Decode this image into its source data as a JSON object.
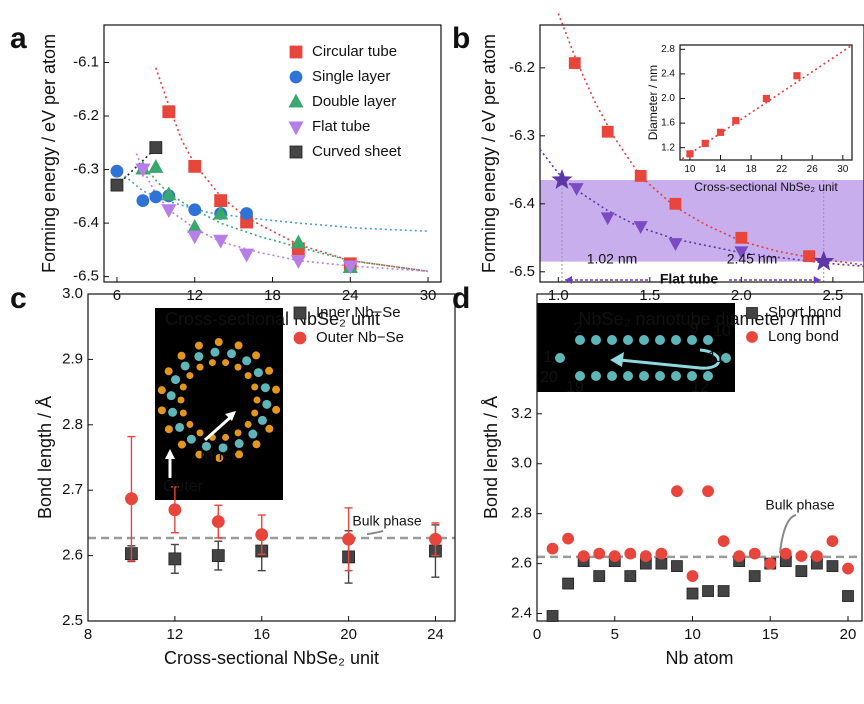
{
  "chart_data": [
    {
      "type": "scatter",
      "panel_label": "a",
      "xlabel": "Cross-sectional NbSe₂ unit",
      "ylabel": "Forming energy / eV per atom",
      "xlim": [
        5,
        31
      ],
      "ylim": [
        -6.51,
        -6.03
      ],
      "xticks": [
        6,
        12,
        18,
        24,
        30
      ],
      "yticks": [
        -6.5,
        -6.4,
        -6.3,
        -6.2,
        -6.1
      ],
      "series": [
        {
          "name": "Circular tube",
          "color": "#e8453c",
          "marker": "square",
          "x": [
            10,
            12,
            14,
            16,
            20,
            24
          ],
          "values": [
            -6.192,
            -6.294,
            -6.358,
            -6.398,
            -6.448,
            -6.476
          ]
        },
        {
          "name": "Single layer",
          "color": "#2f72d8",
          "marker": "circle",
          "x": [
            6,
            8,
            9,
            10,
            12,
            14,
            16
          ],
          "values": [
            -6.303,
            -6.358,
            -6.351,
            -6.349,
            -6.375,
            -6.382,
            -6.382
          ]
        },
        {
          "name": "Double layer",
          "color": "#3aa76d",
          "marker": "triangle",
          "x": [
            8,
            9,
            10,
            12,
            14,
            20,
            24
          ],
          "values": [
            -6.299,
            -6.296,
            -6.347,
            -6.408,
            -6.383,
            -6.437,
            -6.483
          ]
        },
        {
          "name": "Flat tube",
          "color": "#b77ee8",
          "marker": "triangle-down",
          "x": [
            8,
            10,
            12,
            14,
            16,
            20,
            24
          ],
          "values": [
            -6.299,
            -6.375,
            -6.424,
            -6.432,
            -6.458,
            -6.47,
            -6.48
          ]
        },
        {
          "name": "Curved sheet",
          "color": "#444444",
          "marker": "square",
          "x": [
            6,
            9
          ],
          "values": [
            -6.329,
            -6.259
          ]
        }
      ],
      "fit_curves": [
        {
          "color": "#e04040",
          "x": [
            9,
            10,
            11,
            12,
            14,
            16,
            20,
            24,
            30
          ],
          "values": [
            -6.11,
            -6.18,
            -6.245,
            -6.29,
            -6.35,
            -6.39,
            -6.44,
            -6.47,
            -6.49
          ]
        },
        {
          "color": "#4a9be0",
          "x": [
            6,
            8,
            10,
            13,
            16,
            20,
            25,
            30
          ],
          "values": [
            -6.3,
            -6.34,
            -6.36,
            -6.38,
            -6.39,
            -6.4,
            -6.41,
            -6.415
          ]
        },
        {
          "color": "#3aa76d",
          "x": [
            8,
            9,
            10,
            12,
            14,
            17,
            20,
            24,
            30
          ],
          "values": [
            -6.29,
            -6.32,
            -6.345,
            -6.375,
            -6.4,
            -6.425,
            -6.445,
            -6.47,
            -6.49
          ]
        },
        {
          "color": "#b77ee8",
          "x": [
            7.5,
            8,
            9,
            10,
            12,
            14,
            17,
            20,
            24,
            30
          ],
          "values": [
            -6.27,
            -6.3,
            -6.345,
            -6.375,
            -6.41,
            -6.435,
            -6.455,
            -6.47,
            -6.48,
            -6.49
          ]
        },
        {
          "color": "#222222",
          "x": [
            6,
            9.2
          ],
          "values": [
            -6.33,
            -6.255
          ]
        }
      ]
    },
    {
      "type": "scatter",
      "panel_label": "b",
      "xlabel": "NbSe₂ nanotube diameter / nm",
      "ylabel": "Forming energy / eV per atom",
      "xlim": [
        0.9,
        2.67
      ],
      "ylim": [
        -6.515,
        -6.137
      ],
      "xticks": [
        {
          "value": 1,
          "label": "1.0"
        },
        1.5,
        {
          "value": 2,
          "label": "2.0"
        },
        2.5
      ],
      "yticks": [
        -6.5,
        -6.4,
        -6.3,
        -6.2
      ],
      "series": [
        {
          "color": "#e8453c",
          "marker": "square",
          "x": [
            1.09,
            1.27,
            1.45,
            1.64,
            2.0,
            2.37
          ],
          "values": [
            -6.193,
            -6.294,
            -6.359,
            -6.4,
            -6.45,
            -6.477
          ]
        },
        {
          "color": "#7a4cc4",
          "marker": "triangle-down",
          "x": [
            1.1,
            1.27,
            1.45,
            1.64,
            2.0
          ],
          "values": [
            -6.377,
            -6.42,
            -6.433,
            -6.458,
            -6.47
          ]
        },
        {
          "color": "#5c37a6",
          "marker": "star",
          "x": [
            1.02,
            2.45
          ],
          "values": [
            -6.365,
            -6.485
          ]
        }
      ],
      "fit_curves": [
        {
          "color": "#e04040",
          "x": [
            1.0,
            1.1,
            1.2,
            1.3,
            1.45,
            1.64,
            1.8,
            2.0,
            2.2,
            2.4,
            2.67
          ],
          "values": [
            -6.12,
            -6.19,
            -6.25,
            -6.3,
            -6.36,
            -6.405,
            -6.43,
            -6.455,
            -6.47,
            -6.48,
            -6.49
          ]
        },
        {
          "color": "#5c37a6",
          "x": [
            0.9,
            1.0,
            1.1,
            1.27,
            1.45,
            1.64,
            2.0,
            2.45,
            2.67
          ],
          "values": [
            -6.32,
            -6.355,
            -6.38,
            -6.41,
            -6.435,
            -6.452,
            -6.472,
            -6.487,
            -6.492
          ]
        }
      ],
      "shaded_range": [
        -6.485,
        -6.365
      ],
      "vlines": [
        1.02,
        2.45
      ],
      "annotations": [
        "1.02 nm",
        "2.45 nm",
        "Flat tube"
      ],
      "inset": {
        "type": "scatter",
        "xlabel": "Cross-sectional NbSe₂ unit",
        "ylabel": "Diameter / nm",
        "xlim": [
          8.7,
          31.2
        ],
        "ylim": [
          1.0,
          2.87
        ],
        "xticks": [
          10,
          14,
          18,
          22,
          26,
          30
        ],
        "yticks": [
          1.2,
          1.6,
          {
            "value": 2,
            "label": "2.0"
          },
          2.4,
          2.8
        ],
        "series": [
          {
            "color": "#e8453c",
            "marker": "square",
            "x": [
              10,
              12,
              14,
              16,
              20,
              24
            ],
            "values": [
              1.1,
              1.27,
              1.45,
              1.64,
              2.0,
              2.37
            ]
          }
        ],
        "fit_curves": [
          {
            "color": "#e04040",
            "x": [
              9,
              31
            ],
            "values": [
              1.02,
              2.85
            ]
          }
        ]
      }
    },
    {
      "type": "scatter",
      "panel_label": "c",
      "xlabel": "Cross-sectional NbSe₂ unit",
      "ylabel": "Bond length / Å",
      "xlim": [
        8,
        24.9
      ],
      "ylim": [
        2.5,
        3.0
      ],
      "xticks": [
        8,
        12,
        16,
        20,
        24
      ],
      "yticks": [
        2.5,
        2.6,
        2.7,
        2.8,
        2.9,
        {
          "value": 3,
          "label": "3.0"
        }
      ],
      "series": [
        {
          "name": "Inner Nb−Se",
          "color": "#444444",
          "marker": "square",
          "x": [
            10,
            12,
            14,
            16,
            20,
            24
          ],
          "values": [
            2.603,
            2.595,
            2.6,
            2.607,
            2.598,
            2.607
          ],
          "errors": [
            0.012,
            0.022,
            0.022,
            0.03,
            0.04,
            0.04
          ]
        },
        {
          "name": "Outer Nb−Se",
          "color": "#e8453c",
          "marker": "circle",
          "x": [
            10,
            12,
            14,
            16,
            20,
            24
          ],
          "values": [
            2.687,
            2.67,
            2.652,
            2.632,
            2.625,
            2.625
          ],
          "errors": [
            0.095,
            0.035,
            0.025,
            0.03,
            0.048,
            0.025
          ]
        }
      ],
      "hline": 2.627,
      "hline_label": "Bulk phase",
      "inset_labels": [
        "Inner",
        "Outer"
      ]
    },
    {
      "type": "scatter",
      "panel_label": "d",
      "xlabel": "Nb atom",
      "ylabel": "Bond length / Å",
      "xlim": [
        0,
        20.9
      ],
      "ylim": [
        2.37,
        3.68
      ],
      "xticks": [
        0,
        5,
        10,
        15,
        20
      ],
      "yticks": [
        2.4,
        2.6,
        2.8,
        {
          "value": 3,
          "label": "3.0"
        },
        3.2
      ],
      "series": [
        {
          "name": "Short bond",
          "color": "#444444",
          "marker": "square",
          "x": [
            1,
            2,
            3,
            4,
            5,
            6,
            7,
            8,
            9,
            10,
            11,
            12,
            13,
            14,
            15,
            16,
            17,
            18,
            19,
            20
          ],
          "values": [
            2.39,
            2.52,
            2.61,
            2.55,
            2.61,
            2.55,
            2.6,
            2.6,
            2.59,
            2.48,
            2.49,
            2.49,
            2.61,
            2.55,
            2.6,
            2.61,
            2.57,
            2.6,
            2.59,
            2.47
          ]
        },
        {
          "name": "Long bond",
          "color": "#e8453c",
          "marker": "circle",
          "x": [
            1,
            2,
            3,
            4,
            5,
            6,
            7,
            8,
            9,
            10,
            11,
            12,
            13,
            14,
            15,
            16,
            17,
            18,
            19,
            20
          ],
          "values": [
            2.66,
            2.7,
            2.63,
            2.64,
            2.63,
            2.64,
            2.63,
            2.64,
            2.89,
            2.55,
            2.89,
            2.69,
            2.63,
            2.64,
            2.6,
            2.64,
            2.63,
            2.63,
            2.69,
            2.58
          ]
        }
      ],
      "hline": 2.627,
      "hline_label": "Bulk phase",
      "inset_labels": [
        "1",
        "2",
        "9",
        "10",
        "11",
        "12",
        "19",
        "20"
      ]
    }
  ]
}
